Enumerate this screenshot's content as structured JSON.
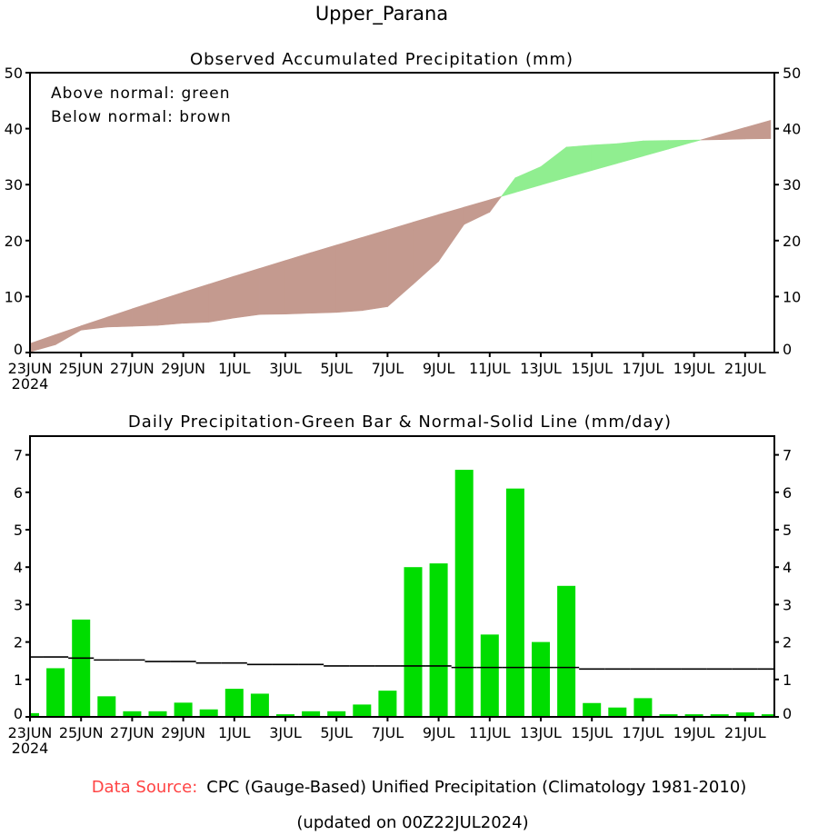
{
  "title": "Upper_Parana",
  "footer": {
    "source_label": "Data Source:",
    "source_text": "CPC (Gauge-Based) Unified Precipitation (Climatology 1981-2010)",
    "updated": "(updated on 00Z22JUL2024)"
  },
  "colors": {
    "above": "#90ee90",
    "below": "#c49a8f",
    "bars": "#00dd00",
    "source_label": "#ff4444"
  },
  "chart_data": [
    {
      "type": "area",
      "title": "Observed Accumulated Precipitation (mm)",
      "legend": [
        "Above normal: green",
        "Below normal: brown"
      ],
      "legend_placement": "top-left",
      "ylim": [
        0,
        50
      ],
      "yticks": [
        0,
        10,
        20,
        30,
        40,
        50
      ],
      "xticks": [
        "23JUN",
        "25JUN",
        "27JUN",
        "29JUN",
        "1JUL",
        "3JUL",
        "5JUL",
        "7JUL",
        "9JUL",
        "11JUL",
        "13JUL",
        "15JUL",
        "17JUL",
        "19JUL",
        "21JUL"
      ],
      "year_label": "2024",
      "days": 30,
      "observed": [
        0.1,
        1.4,
        4.0,
        4.55,
        4.7,
        4.85,
        5.23,
        5.43,
        6.18,
        6.8,
        6.87,
        7.02,
        7.17,
        7.5,
        8.2,
        12.2,
        16.3,
        22.9,
        25.1,
        31.2,
        33.2,
        36.7,
        37.07,
        37.32,
        37.82,
        37.89,
        37.96,
        38.03,
        38.15,
        38.22
      ],
      "normal": [
        1.6,
        3.2,
        4.77,
        6.29,
        7.81,
        9.29,
        10.77,
        12.21,
        13.65,
        15.05,
        16.45,
        17.85,
        19.21,
        20.57,
        21.93,
        23.29,
        24.65,
        25.97,
        27.29,
        28.61,
        29.93,
        31.25,
        32.53,
        33.81,
        35.09,
        36.37,
        37.65,
        38.93,
        40.21,
        41.49
      ]
    },
    {
      "type": "bar",
      "title": "Daily Precipitation-Green Bar & Normal-Solid Line (mm/day)",
      "ylim": [
        0,
        7.5
      ],
      "yticks": [
        0,
        1,
        2,
        3,
        4,
        5,
        6,
        7
      ],
      "xticks": [
        "23JUN",
        "25JUN",
        "27JUN",
        "29JUN",
        "1JUL",
        "3JUL",
        "5JUL",
        "7JUL",
        "9JUL",
        "11JUL",
        "13JUL",
        "15JUL",
        "17JUL",
        "19JUL",
        "21JUL"
      ],
      "year_label": "2024",
      "days": 30,
      "values": [
        0.1,
        1.3,
        2.6,
        0.55,
        0.15,
        0.15,
        0.38,
        0.2,
        0.75,
        0.62,
        0.07,
        0.15,
        0.15,
        0.33,
        0.7,
        4.0,
        4.1,
        6.6,
        2.2,
        6.1,
        2.0,
        3.5,
        0.37,
        0.25,
        0.5,
        0.07,
        0.07,
        0.07,
        0.12,
        0.07
      ],
      "normal": [
        1.6,
        1.6,
        1.57,
        1.52,
        1.52,
        1.48,
        1.48,
        1.44,
        1.44,
        1.4,
        1.4,
        1.4,
        1.36,
        1.36,
        1.36,
        1.36,
        1.36,
        1.32,
        1.32,
        1.32,
        1.32,
        1.32,
        1.28,
        1.28,
        1.28,
        1.28,
        1.28,
        1.28,
        1.28,
        1.28
      ]
    }
  ]
}
